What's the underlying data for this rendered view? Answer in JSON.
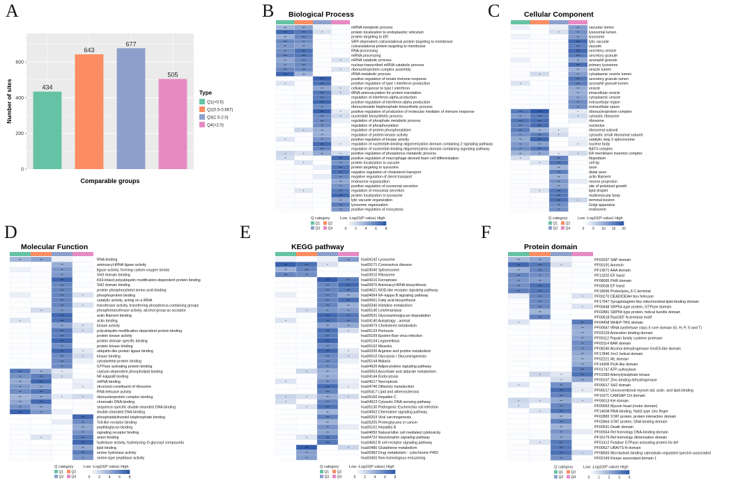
{
  "panel_labels": [
    "A",
    "B",
    "C",
    "D",
    "E",
    "F"
  ],
  "colors": {
    "q1": "#66c2a5",
    "q2": "#fc8d62",
    "q3": "#8da0cb",
    "q4": "#e78ac3",
    "heat_low": "#ffffff",
    "heat_high": "#2f5aa9"
  },
  "chart_data": [
    {
      "id": "A",
      "type": "bar",
      "title": "",
      "xlabel": "Comparable groups",
      "ylabel": "Number of sites",
      "ylim": [
        0,
        760
      ],
      "yticks": [
        0,
        200,
        400,
        600
      ],
      "categories": [
        "Q1(<0.5)",
        "Q2(0.5-0.667)",
        "Q3(1.5-2.0)",
        "Q4(>2.0)"
      ],
      "values": [
        434,
        643,
        677,
        505
      ],
      "legend": {
        "title": "Type",
        "entries": [
          "Q1(<0.5)",
          "Q2(0.5-0.667)",
          "Q3(1.5-2.0)",
          "Q4(>2.0)"
        ],
        "placement": "right"
      }
    },
    {
      "id": "B",
      "type": "heatmap",
      "title": "Biological Process",
      "columns": [
        "Q1",
        "Q2",
        "Q3",
        "Q4"
      ],
      "rows": [
        "mRNA metabolic process",
        "protein localization to endoplasmic reticulum",
        "protein targeting to ER",
        "SRP-dependent cotranslational protein targeting to membrane",
        "cotranslational protein targeting to membrane",
        "RNA processing",
        "mRNA processing",
        "mRNA catabolic process",
        "nuclear-transcribed mRNA catabolic process",
        "ribonucleoprotein complex assembly",
        "rRNA metabolic process",
        "positive regulation of innate immune response",
        "positive regulation of type I interferon production",
        "cellular response to type I interferon",
        "tRNA aminoacylation for protein translation",
        "regulation of interferon-alpha production",
        "positive regulation of interferon-alpha production",
        "ribonucleoside bisphosphate biosynthetic process",
        "positive regulation of production of molecular mediator of immune response",
        "nucleotide biosynthetic process",
        "regulation of phosphate metabolic process",
        "regulation of phosphorylation",
        "regulation of protein phosphorylation",
        "regulation of protein kinase activity",
        "positive regulation of kinase activity",
        "regulation of nucleotide-binding oligomerization domain containing 2 signaling pathway",
        "regulation of nucleotide-binding oligomerization domain containing signaling pathway",
        "positive regulation of phosphorus metabolic process",
        "positive regulation of macrophage derived foam cell differentiation",
        "protein localization to vacuole",
        "protein targeting to lysosome",
        "negative regulation of cholesterol transport",
        "negative regulation of sterol transport",
        "endosome organization",
        "positive regulation of exosomal secretion",
        "regulation of exosomal secretion",
        "protein localization to lysosome",
        "lytic vacuole organization",
        "lysosome organization",
        "positive regulation of exocytosis"
      ],
      "groups": [
        [
          0,
          10,
          [
            0,
            1
          ]
        ],
        [
          11,
          17,
          [
            2
          ]
        ],
        [
          18,
          27,
          [
            2
          ]
        ],
        [
          28,
          39,
          [
            3
          ]
        ]
      ],
      "legend": {
        "category_title": "Q category",
        "scale_title": "Low  -Log10(P value)  High",
        "ticks": [
          "0",
          "2",
          "4",
          "6",
          "8"
        ],
        "categories": [
          "Q1",
          "Q2",
          "Q3",
          "Q4"
        ]
      }
    },
    {
      "id": "C",
      "type": "heatmap",
      "title": "Cellular Component",
      "columns": [
        "Q1",
        "Q2",
        "Q3",
        "Q4"
      ],
      "rows": [
        "vacuolar lumen",
        "lysosomal lumen",
        "lysosome",
        "lytic vacuole",
        "vacuole",
        "secretory vesicle",
        "secretory granule",
        "azurophil granule",
        "primary lysosome",
        "vesicle lumen",
        "cytoplasmic vesicle lumen",
        "secretory granule lumen",
        "azurophil granule lumen",
        "vesicle",
        "intracellular vesicle",
        "cytoplasmic vesicle",
        "extracellular region",
        "extracellular space",
        "ribonucleoprotein complex",
        "cytosolic ribosome",
        "ribosome",
        "nucleolus",
        "ribosomal subunit",
        "cytosolic small ribosomal subunit",
        "catalytic step 2 spliceosome",
        "nuclear body",
        "BAT3 complex",
        "ER membrane insertion complex",
        "filopodium",
        "cell tip",
        "axon",
        "distal axon",
        "actin filament",
        "neuron projection",
        "site of polarized growth",
        "lipid droplet",
        "multivesicular body",
        "terminal bouton",
        "Golgi apparatus",
        "endosome"
      ],
      "groups": [
        [
          0,
          17,
          [
            3
          ]
        ],
        [
          18,
          27,
          [
            0,
            1
          ]
        ],
        [
          28,
          39,
          [
            2
          ]
        ]
      ],
      "legend": {
        "category_title": "Q category",
        "scale_title": "Low  -Log10(P value)  High",
        "ticks": [
          "0",
          "5",
          "10",
          "15",
          "20"
        ],
        "categories": [
          "Q1",
          "Q2",
          "Q3",
          "Q4"
        ]
      }
    },
    {
      "id": "D",
      "type": "heatmap",
      "title": "Molecular Function",
      "columns": [
        "Q1",
        "Q2",
        "Q3",
        "Q4"
      ],
      "rows": [
        "RNA binding",
        "aminoacyl-tRNA ligase activity",
        "ligase activity, forming carbon-oxygen bonds",
        "SH3 domain binding",
        "K63-linked polyubiquitin modification-dependent protein binding",
        "SH2 domain binding",
        "protein phosphorylated amino acid binding",
        "phosphoprotein binding",
        "catalytic activity, acting on a tRNA",
        "transferase activity, transferring phosphorus-containing groups",
        "phosphotransferase activity, alcohol group as acceptor",
        "actin filament binding",
        "actin binding",
        "kinase activity",
        "polyubiquitin modification-dependent protein binding",
        "protein kinase activity",
        "protein domain specific binding",
        "protein kinase binding",
        "ubiquitin-like protein ligase binding",
        "kinase binding",
        "cytoskeletal protein binding",
        "GTPase activating protein binding",
        "calcium-dependent phospholipid binding",
        "NF-kappaB binding",
        "mRNA binding",
        "structural constituent of ribosome",
        "RNA helicase activity",
        "ribonucleoprotein complex binding",
        "chromatin DNA binding",
        "sequence-specific double-stranded DNA binding",
        "double-stranded DNA binding",
        "phosphatidylinositol bisphosphate binding",
        "Toll-like receptor binding",
        "peptidoglycan binding",
        "signaling receptor binding",
        "anion binding",
        "hydrolase activity, hydrolyzing O-glycosyl compounds",
        "lipid binding",
        "serine hydrolase activity",
        "serine-type peptidase activity"
      ],
      "groups": [
        [
          0,
          0,
          [
            0,
            1
          ]
        ],
        [
          1,
          21,
          [
            2
          ]
        ],
        [
          22,
          30,
          [
            0,
            1
          ]
        ],
        [
          31,
          39,
          [
            3
          ]
        ]
      ],
      "legend": {
        "category_title": "Q category",
        "scale_title": "Low  -Log10(P value)  High",
        "ticks": [
          "0",
          "2",
          "4",
          "6",
          "8"
        ],
        "categories": [
          "Q1",
          "Q2",
          "Q3",
          "Q4"
        ]
      }
    },
    {
      "id": "E",
      "type": "heatmap",
      "title": "KEGG pathway",
      "columns": [
        "Q1",
        "Q2",
        "Q3",
        "Q4"
      ],
      "rows": [
        "hsa04142 Lysosome",
        "hsa05171 Coronavirus disease",
        "hsa03040 Spliceosome",
        "hsa03010 Ribosome",
        "hsa04216 Ferroptosis",
        "hsa00970 Aminoacyl-tRNA biosynthesis",
        "hsa04621 NOD-like receptor signaling pathway",
        "hsa04064 NF-kappa B signaling pathway",
        "hsa00061 Fatty acid biosynthesis",
        "hsa00340 Histidine metabolism",
        "hsa05140 Leishmaniasis",
        "hsa00531 Glycosaminoglycan degradation",
        "hsa04140 Autophagy - animal",
        "hsa04979 Cholesterol metabolism",
        "hsa05133 Pertussis",
        "hsa05169 Epstein-Barr virus infection",
        "hsa05134 Legionellosis",
        "hsa05162 Measles",
        "hsa00330 Arginine and proline metabolism",
        "hsa00010 Glycolysis / Gluconeogenesis",
        "hsa05144 Malaria",
        "hsa04920 Adipocytokine signaling pathway",
        "hsa00053 Ascorbate and aldarate metabolism",
        "hsa04144 Endocytosis",
        "hsa04217 Necroptosis",
        "hsa04740 Olfactory transduction",
        "hsa05417 Lipid and atherosclerosis",
        "hsa05160 Hepatitis C",
        "hsa04623 Cytosolic DNA-sensing pathway",
        "hsa05130 Pathogenic Escherichia coli infection",
        "hsa04062 Chemokine signaling pathway",
        "hsa05203 Viral carcinogenesis",
        "hsa05205 Proteoglycans in cancer",
        "hsa05161 Hepatitis B",
        "hsa04650 Natural killer cell mediated cytotoxicity",
        "hsa04722 Neurotrophin signaling pathway",
        "hsa04662 B cell receptor signaling pathway",
        "hsa00480 Glutathione metabolism",
        "hsa00982 Drug metabolism - cytochrome P450",
        "hsa03450 Non-homologous end-joining"
      ],
      "groups": [
        [
          0,
          0,
          [
            3
          ]
        ],
        [
          1,
          3,
          [
            0,
            1
          ]
        ],
        [
          4,
          13,
          [
            2,
            3
          ]
        ],
        [
          14,
          36,
          [
            2
          ]
        ],
        [
          37,
          39,
          [
            1
          ]
        ]
      ],
      "legend": {
        "category_title": "Q category",
        "scale_title": "Low  -Log10(P value)  High",
        "ticks": [
          "0",
          "2",
          "4",
          "6",
          "8"
        ],
        "categories": [
          "Q1",
          "Q2",
          "Q3",
          "Q4"
        ]
      }
    },
    {
      "id": "F",
      "type": "heatmap",
      "title": "Protein domain",
      "columns": [
        "Q1",
        "Q2",
        "Q3",
        "Q4"
      ],
      "rows": [
        "PF02037 SAP domain",
        "PF00191 Annexin",
        "PF13671 AAA domain",
        "PF13202 EF hand",
        "PF08005 PHR domain",
        "PF00036 EF hand",
        "PF18096 Proteolysis_6 C-terminal",
        "PF00270 DEAD/DEAH box helicase",
        "PF17047 Synaptotagmin-like mitochondrial-lipid-binding domain",
        "PF00448 SRP54-type protein, GTPase domain",
        "PF02881 SRP54-type protein, helical bundle domain",
        "PF00618 RasGEF N-terminal motif",
        "PF04458 WHEP-TRS domain",
        "PF00587 tRNA synthetase class II core domain (G, H, P, S and T)",
        "PF03129 Anticodon binding domain",
        "PF00112 Papain family cysteine protease",
        "PF03114 BAR domain",
        "PF08240 Alcohol dehydrogenase GroES-like domain",
        "PF17846 Xrn1 helical domain",
        "PF02221 ML domain",
        "PF14306 PUA-like domain",
        "PF01747 ATP-sulfurylase",
        "PF01583 Adenylylsulphate kinase",
        "PF00107 Zinc-binding dehydrogenase",
        "PF00017 SH2 domain",
        "PF06017 Unconventional myosin tail, actin- and lipid-binding",
        "PF11971 CAMSAP CH domain",
        "PF00013 KH domain",
        "PF00063 Myosin head (motor domain)",
        "PF14608 RNA-binding, Nab2-type zinc finger",
        "PF02865 STAT protein, protein interaction domain",
        "PF02864 STAT protein, DNA binding domain",
        "PF00531 Death domain",
        "PF00554 Rel homology DNA-binding domain",
        "PF16179 Rel homology dimerisation domain",
        "PF01412 Putative GTPase activating protein for Arf",
        "PF00627 UBA/TS-N domain",
        "PF08683 Microtubule-binding calmodulin-regulated spectrin-associated",
        "PF02149 Kinase associated domain 1"
      ],
      "groups": [
        [
          0,
          6,
          [
            0,
            1
          ]
        ],
        [
          7,
          11,
          [
            1
          ]
        ],
        [
          12,
          23,
          [
            3
          ]
        ],
        [
          24,
          38,
          [
            2
          ]
        ]
      ],
      "legend": {
        "category_title": "Q category",
        "scale_title": "Low  -Log10(P value)  High",
        "ticks": [
          "0",
          "1",
          "2",
          "3",
          "4"
        ],
        "categories": [
          "Q1",
          "Q2",
          "Q3",
          "Q4"
        ]
      }
    }
  ]
}
